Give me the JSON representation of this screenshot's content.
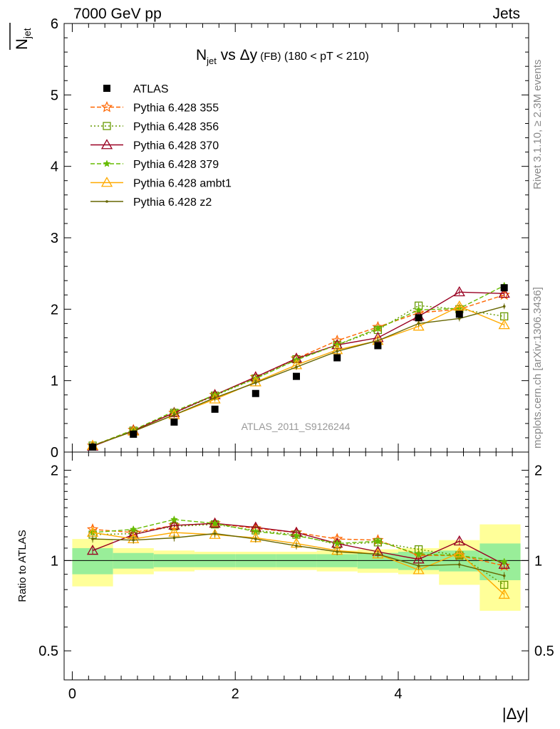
{
  "header": {
    "left": "7000 GeV pp",
    "right": "Jets"
  },
  "side_labels": {
    "rivet": "Rivet 3.1.10, ≥ 2.3M events",
    "mcplots": "mcplots.cern.ch [arXiv:1306.3436]"
  },
  "chart_data": {
    "type": "line",
    "title_main": "N",
    "title_sub": "jet",
    "title_rest": " vs Δy",
    "title_small": " (FB)",
    "title_range": " (180 < pT < 210)",
    "ylabel_main": "N",
    "ylabel_sub": "jet",
    "xlabel": "|Δy|",
    "ratio_ylabel": "Ratio to ATLAS",
    "watermark": "ATLAS_2011_S9126244",
    "xlim": [
      -0.1,
      5.6
    ],
    "ylim": [
      0,
      6
    ],
    "ratio_ylim": [
      0.4,
      2.3
    ],
    "x_ticks": [
      "0",
      "2",
      "4"
    ],
    "y_ticks": [
      "0",
      "1",
      "2",
      "3",
      "4",
      "5",
      "6"
    ],
    "ratio_ticks": [
      "0.5",
      "1",
      "2"
    ],
    "x": [
      0.25,
      0.75,
      1.25,
      1.75,
      2.25,
      2.75,
      3.25,
      3.75,
      4.25,
      4.75,
      5.3
    ],
    "bin_edges": [
      0,
      0.5,
      1.0,
      1.5,
      2.0,
      2.5,
      3.0,
      3.5,
      4.0,
      4.5,
      5.0,
      5.5
    ],
    "data": {
      "name": "ATLAS",
      "values": [
        0.07,
        0.25,
        0.42,
        0.6,
        0.82,
        1.06,
        1.32,
        1.49,
        1.88,
        1.93,
        2.3
      ],
      "band_inner": [
        0.1,
        0.06,
        0.05,
        0.05,
        0.05,
        0.05,
        0.05,
        0.06,
        0.07,
        0.08,
        0.14
      ],
      "band_outer": [
        0.18,
        0.1,
        0.08,
        0.07,
        0.07,
        0.07,
        0.08,
        0.09,
        0.1,
        0.17,
        0.32
      ]
    },
    "series": [
      {
        "name": "Pythia 6.428 355",
        "color": "#ff6600",
        "dash": "6,3",
        "marker": "star-open",
        "values": [
          0.09,
          0.31,
          0.55,
          0.8,
          1.05,
          1.31,
          1.56,
          1.75,
          1.95,
          2.0,
          2.2
        ],
        "ratio": [
          1.27,
          1.24,
          1.31,
          1.33,
          1.28,
          1.24,
          1.18,
          1.17,
          1.04,
          1.04,
          0.96
        ]
      },
      {
        "name": "Pythia 6.428 356",
        "color": "#669900",
        "dash": "2,3",
        "marker": "square-open",
        "values": [
          0.09,
          0.3,
          0.55,
          0.79,
          1.03,
          1.3,
          1.5,
          1.71,
          2.05,
          2.0,
          1.9
        ],
        "ratio": [
          1.22,
          1.23,
          1.3,
          1.32,
          1.26,
          1.22,
          1.13,
          1.15,
          1.09,
          1.04,
          0.83
        ]
      },
      {
        "name": "Pythia 6.428 370",
        "color": "#990022",
        "dash": "",
        "marker": "triangle-open",
        "values": [
          0.08,
          0.3,
          0.55,
          0.8,
          1.05,
          1.31,
          1.5,
          1.6,
          1.9,
          2.24,
          2.22
        ],
        "ratio": [
          1.08,
          1.22,
          1.31,
          1.33,
          1.29,
          1.24,
          1.14,
          1.07,
          1.01,
          1.16,
          0.97
        ]
      },
      {
        "name": "Pythia 6.428 379",
        "color": "#66bb00",
        "dash": "6,3",
        "marker": "star",
        "values": [
          0.09,
          0.31,
          0.57,
          0.8,
          1.03,
          1.29,
          1.5,
          1.73,
          1.99,
          2.01,
          2.33
        ],
        "ratio": [
          1.24,
          1.27,
          1.37,
          1.33,
          1.25,
          1.21,
          1.14,
          1.16,
          1.05,
          1.04,
          0.99
        ]
      },
      {
        "name": "Pythia 6.428 ambt1",
        "color": "#ffaa00",
        "dash": "",
        "marker": "triangle-open",
        "values": [
          0.09,
          0.29,
          0.52,
          0.74,
          0.98,
          1.22,
          1.43,
          1.56,
          1.76,
          2.04,
          1.78
        ],
        "ratio": [
          1.24,
          1.18,
          1.24,
          1.22,
          1.19,
          1.14,
          1.08,
          1.05,
          0.93,
          1.06,
          0.77
        ]
      },
      {
        "name": "Pythia 6.428 z2",
        "color": "#666600",
        "dash": "",
        "marker": "dot",
        "values": [
          0.09,
          0.29,
          0.52,
          0.76,
          0.97,
          1.19,
          1.41,
          1.56,
          1.8,
          1.87,
          2.04
        ],
        "ratio": [
          1.18,
          1.17,
          1.19,
          1.23,
          1.18,
          1.12,
          1.07,
          1.05,
          0.96,
          0.97,
          0.89
        ]
      }
    ]
  }
}
